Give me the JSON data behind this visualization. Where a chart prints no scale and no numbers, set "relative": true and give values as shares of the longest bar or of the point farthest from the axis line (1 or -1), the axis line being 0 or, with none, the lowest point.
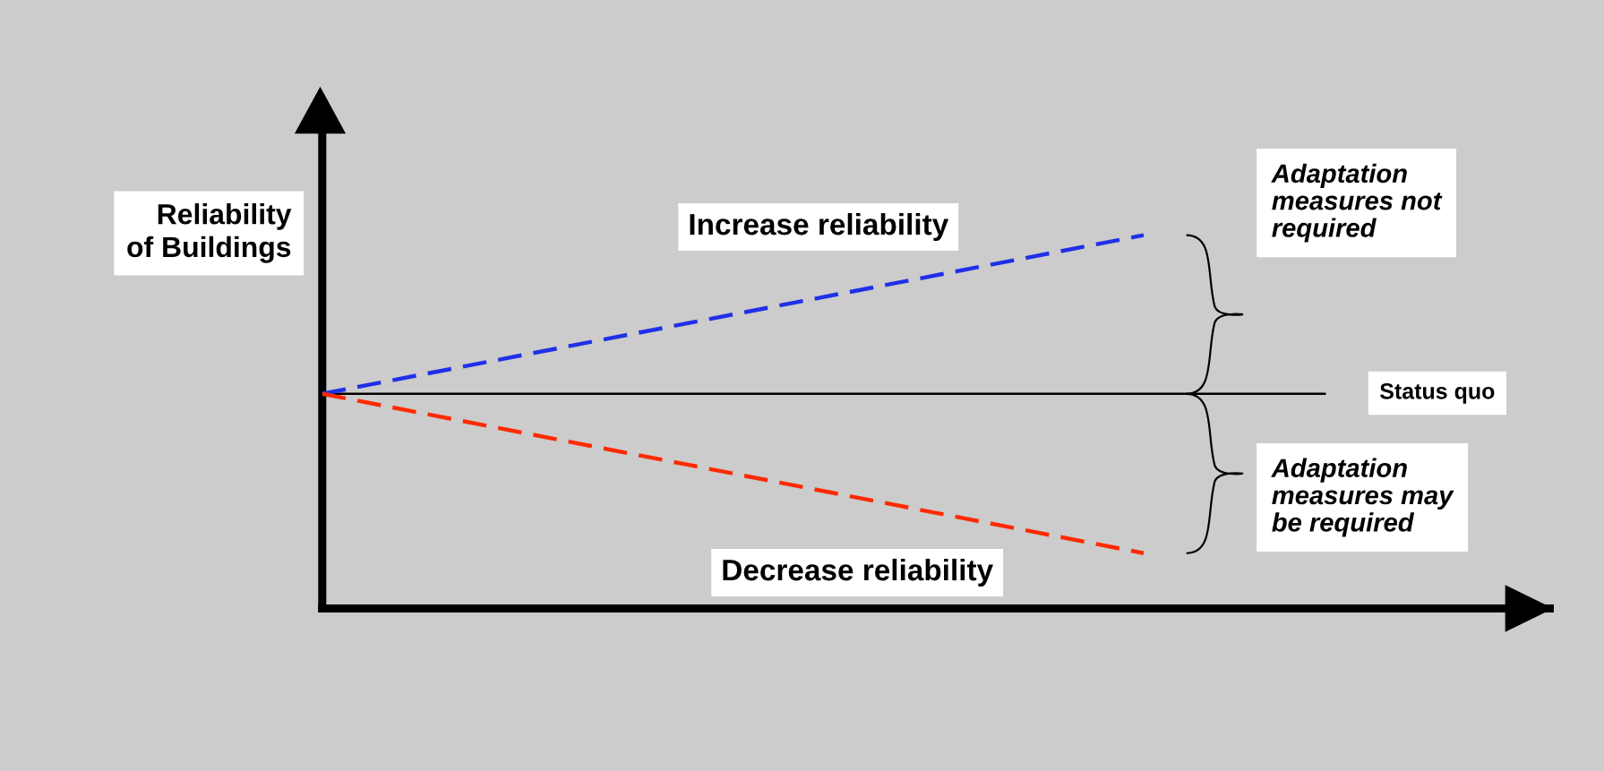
{
  "chart_data": {
    "type": "line",
    "relative": true,
    "ylabel": "Reliability\nof Buildings",
    "categories": [
      null,
      null
    ],
    "series": [
      {
        "name": "Increase reliability",
        "color": "#2030e8",
        "values": [
          0.575,
          1
        ]
      },
      {
        "name": "Decrease reliability",
        "color": "#ff2a00",
        "values": [
          0.575,
          0.148
        ]
      }
    ],
    "line_style": "dashed",
    "marker": "none",
    "grid": false,
    "legend": false,
    "tick_labels": false,
    "ref_lines": [
      {
        "axis": "y",
        "value": 0.575,
        "label": "Status quo",
        "color": "#000000",
        "line_style": "solid"
      }
    ],
    "annotations": [
      "Adaptation\nmeasures not\nrequired",
      "Adaptation\nmeasures may\nbe required"
    ]
  }
}
